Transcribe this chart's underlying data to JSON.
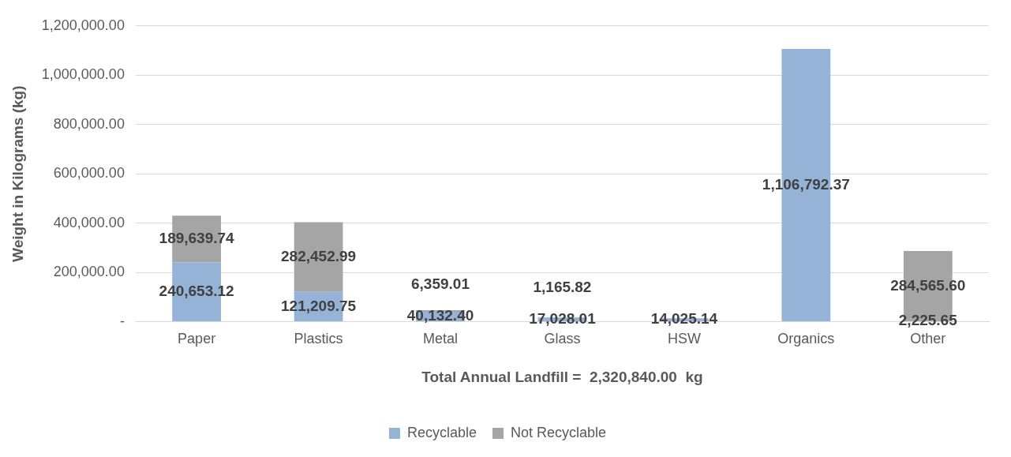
{
  "chart_data": {
    "type": "bar",
    "stacked": true,
    "xlabel": "Total Annual Landfill =  2,320,840.00  kg",
    "ylabel": "Weight in Kilograms (kg)",
    "categories": [
      "Paper",
      "Plastics",
      "Metal",
      "Glass",
      "HSW",
      "Organics",
      "Other"
    ],
    "series": [
      {
        "name": "Recyclable",
        "color": "#95b3d7",
        "values": [
          240653.12,
          121209.75,
          40132.4,
          17028.01,
          14025.14,
          1106792.37,
          2225.65
        ],
        "value_labels": [
          "240,653.12",
          "121,209.75",
          "40,132.40",
          "17,028.01",
          "14,025.14",
          "1,106,792.37",
          "2,225.65"
        ]
      },
      {
        "name": "Not Recyclable",
        "color": "#a5a5a5",
        "values": [
          189639.74,
          282452.99,
          6359.01,
          1165.82,
          null,
          null,
          284565.6
        ],
        "value_labels": [
          "189,639.74",
          "282,452.99",
          "6,359.01",
          "1,165.82",
          null,
          null,
          "284,565.60"
        ]
      }
    ],
    "ylim": [
      0,
      1200000
    ],
    "yticks": [
      {
        "value": 0,
        "label": "-"
      },
      {
        "value": 200000,
        "label": "200,000.00"
      },
      {
        "value": 400000,
        "label": "400,000.00"
      },
      {
        "value": 600000,
        "label": "600,000.00"
      },
      {
        "value": 800000,
        "label": "800,000.00"
      },
      {
        "value": 1000000,
        "label": "1,000,000.00"
      },
      {
        "value": 1200000,
        "label": "1,200,000.00"
      }
    ],
    "grid": "y",
    "legend": "bottom"
  }
}
